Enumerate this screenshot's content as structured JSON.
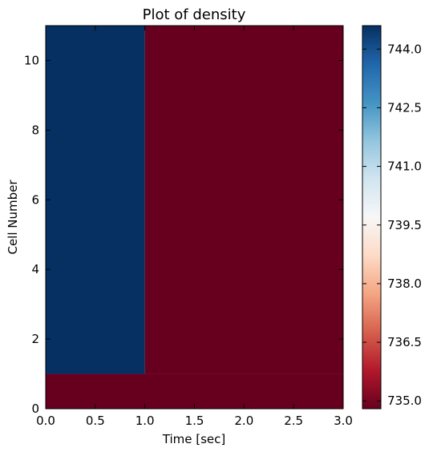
{
  "chart_data": {
    "type": "heatmap",
    "title": "Plot of density",
    "xlabel": "Time [sec]",
    "ylabel": "Cell Number",
    "xlim": [
      0.0,
      3.0
    ],
    "ylim": [
      0,
      11
    ],
    "x_ticks": [
      "0.0",
      "0.5",
      "1.0",
      "1.5",
      "2.0",
      "2.5",
      "3.0"
    ],
    "y_ticks": [
      "0",
      "2",
      "4",
      "6",
      "8",
      "10"
    ],
    "colormap": "RdBu",
    "color_low": "#67001f",
    "color_high": "#053061",
    "colorbar": {
      "min": 734.8,
      "max": 744.6,
      "ticks": [
        "735.0",
        "736.5",
        "738.0",
        "739.5",
        "741.0",
        "742.5",
        "744.0"
      ]
    },
    "cells": [
      {
        "x_range": [
          0.0,
          1.0
        ],
        "y_range": [
          1,
          11
        ],
        "value": 744.6
      },
      {
        "x_range": [
          0.0,
          3.0
        ],
        "y_range": [
          0,
          1
        ],
        "value": 734.8
      },
      {
        "x_range": [
          1.0,
          3.0
        ],
        "y_range": [
          1,
          11
        ],
        "value": 734.8
      }
    ],
    "grid": false
  }
}
